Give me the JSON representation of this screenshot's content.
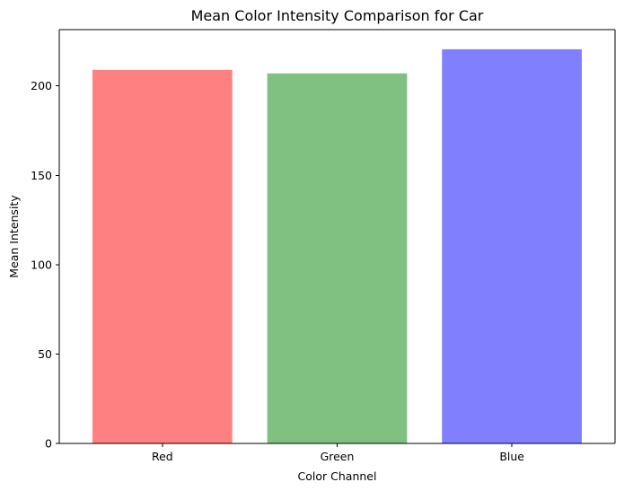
{
  "chart_data": {
    "type": "bar",
    "title": "Mean Color Intensity Comparison for Car",
    "xlabel": "Color Channel",
    "ylabel": "Mean Intensity",
    "categories": [
      "Red",
      "Green",
      "Blue"
    ],
    "values": [
      209,
      207,
      220.5
    ],
    "colors": [
      "#ff8080",
      "#80c080",
      "#8080ff"
    ],
    "ylim": [
      0,
      231.5
    ],
    "yticks": [
      0,
      50,
      100,
      150,
      200
    ],
    "grid": false,
    "legend": "none"
  }
}
